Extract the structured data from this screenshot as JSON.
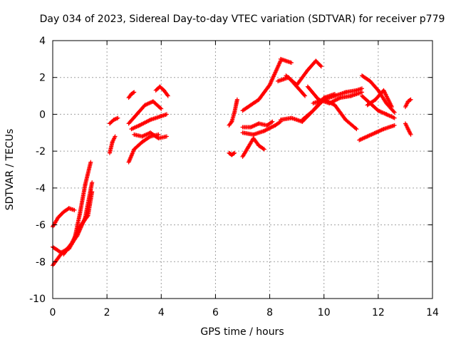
{
  "chart_data": {
    "type": "scatter",
    "title": "Day 034 of 2023, Sidereal Day-to-day VTEC variation (SDTVAR) for receiver p779",
    "xlabel": "GPS time / hours",
    "ylabel": "SDTVAR / TECUs",
    "xlim": [
      0,
      14
    ],
    "ylim": [
      -10,
      4
    ],
    "xticks": [
      0,
      2,
      4,
      6,
      8,
      10,
      12,
      14
    ],
    "yticks": [
      -10,
      -8,
      -6,
      -4,
      -2,
      0,
      2,
      4
    ],
    "grid": true,
    "marker": "plus",
    "color": "#ff0000",
    "segments": [
      {
        "x": [
          0.0,
          0.2,
          0.4,
          0.6,
          0.8
        ],
        "y": [
          -6.1,
          -5.6,
          -5.3,
          -5.1,
          -5.2
        ]
      },
      {
        "x": [
          0.0,
          0.3,
          0.6,
          0.9,
          1.2,
          1.45
        ],
        "y": [
          -8.2,
          -7.6,
          -7.2,
          -6.6,
          -5.6,
          -3.7
        ]
      },
      {
        "x": [
          0.0,
          0.3,
          0.6,
          0.8,
          1.0,
          1.2,
          1.4
        ],
        "y": [
          -7.2,
          -7.5,
          -7.3,
          -6.8,
          -5.4,
          -3.8,
          -2.6
        ]
      },
      {
        "x": [
          0.4,
          0.7,
          1.0,
          1.3,
          1.45
        ],
        "y": [
          -7.6,
          -7.0,
          -6.1,
          -5.5,
          -4.2
        ]
      },
      {
        "x": [
          2.1,
          2.2,
          2.3
        ],
        "y": [
          -2.1,
          -1.5,
          -1.2
        ]
      },
      {
        "x": [
          2.1,
          2.25,
          2.4
        ],
        "y": [
          -0.5,
          -0.3,
          -0.2
        ]
      },
      {
        "x": [
          2.8,
          3.0,
          3.3,
          3.6,
          3.9
        ],
        "y": [
          -2.6,
          -1.9,
          -1.5,
          -1.2,
          -1.1
        ]
      },
      {
        "x": [
          2.8,
          3.1,
          3.4,
          3.7,
          4.0
        ],
        "y": [
          -0.5,
          0.0,
          0.5,
          0.7,
          0.3
        ]
      },
      {
        "x": [
          3.0,
          3.3,
          3.6,
          3.9,
          4.2
        ],
        "y": [
          -1.1,
          -1.2,
          -1.0,
          -1.3,
          -1.2
        ]
      },
      {
        "x": [
          2.9,
          3.2,
          3.6,
          4.0,
          4.2
        ],
        "y": [
          -0.8,
          -0.6,
          -0.3,
          -0.1,
          0.0
        ]
      },
      {
        "x": [
          2.8,
          2.9,
          3.0
        ],
        "y": [
          0.9,
          1.1,
          1.2
        ]
      },
      {
        "x": [
          3.8,
          3.95,
          4.1,
          4.25
        ],
        "y": [
          1.3,
          1.5,
          1.3,
          1.0
        ]
      },
      {
        "x": [
          6.5,
          6.6,
          6.7
        ],
        "y": [
          -2.1,
          -2.2,
          -2.1
        ]
      },
      {
        "x": [
          6.5,
          6.6,
          6.7,
          6.8
        ],
        "y": [
          -0.6,
          -0.4,
          0.1,
          0.8
        ]
      },
      {
        "x": [
          7.0,
          7.2,
          7.4,
          7.6,
          7.8
        ],
        "y": [
          -2.3,
          -1.8,
          -1.3,
          -1.7,
          -1.9
        ]
      },
      {
        "x": [
          7.0,
          7.3,
          7.6,
          7.9,
          8.1
        ],
        "y": [
          -0.7,
          -0.7,
          -0.5,
          -0.6,
          -0.4
        ]
      },
      {
        "x": [
          7.0,
          7.3,
          7.6,
          8.0,
          8.4
        ],
        "y": [
          0.2,
          0.5,
          0.8,
          1.6,
          2.9
        ]
      },
      {
        "x": [
          7.0,
          7.4,
          7.8,
          8.2,
          8.4
        ],
        "y": [
          -1.0,
          -1.1,
          -0.9,
          -0.6,
          -0.4
        ]
      },
      {
        "x": [
          8.3,
          8.5,
          8.7,
          9.0,
          9.3
        ],
        "y": [
          1.8,
          1.9,
          2.0,
          1.5,
          1.0
        ]
      },
      {
        "x": [
          8.4,
          8.6,
          8.8
        ],
        "y": [
          3.0,
          2.9,
          2.8
        ]
      },
      {
        "x": [
          8.6,
          9.0,
          9.4,
          9.7,
          9.9
        ],
        "y": [
          2.1,
          1.6,
          2.4,
          2.9,
          2.6
        ]
      },
      {
        "x": [
          8.4,
          8.8,
          9.2,
          9.6,
          10.0,
          10.4
        ],
        "y": [
          -0.3,
          -0.2,
          -0.4,
          0.2,
          0.9,
          1.1
        ]
      },
      {
        "x": [
          9.2,
          9.6,
          10.0,
          10.4,
          10.8,
          11.2
        ],
        "y": [
          -0.3,
          0.2,
          0.8,
          0.5,
          -0.3,
          -0.8
        ]
      },
      {
        "x": [
          9.4,
          9.8,
          10.2,
          10.6,
          11.0,
          11.4
        ],
        "y": [
          1.5,
          0.8,
          0.6,
          0.9,
          1.0,
          1.2
        ]
      },
      {
        "x": [
          9.6,
          10.0,
          10.4,
          10.8,
          11.2,
          11.4
        ],
        "y": [
          0.6,
          0.8,
          1.0,
          1.2,
          1.3,
          1.4
        ]
      },
      {
        "x": [
          11.3,
          11.6,
          11.9,
          12.2,
          12.6
        ],
        "y": [
          -1.4,
          -1.2,
          -1.0,
          -0.8,
          -0.6
        ]
      },
      {
        "x": [
          11.4,
          11.7,
          12.0,
          12.3,
          12.6
        ],
        "y": [
          2.1,
          1.8,
          1.3,
          0.6,
          0.1
        ]
      },
      {
        "x": [
          11.4,
          11.7,
          12.0,
          12.3,
          12.6
        ],
        "y": [
          1.0,
          0.6,
          0.2,
          0.0,
          -0.2
        ]
      },
      {
        "x": [
          11.6,
          11.9,
          12.2,
          12.5
        ],
        "y": [
          0.5,
          0.8,
          1.3,
          0.4
        ]
      },
      {
        "x": [
          13.0,
          13.1,
          13.2
        ],
        "y": [
          -0.5,
          -0.8,
          -1.1
        ]
      },
      {
        "x": [
          13.0,
          13.1,
          13.2
        ],
        "y": [
          0.4,
          0.7,
          0.8
        ]
      }
    ]
  }
}
